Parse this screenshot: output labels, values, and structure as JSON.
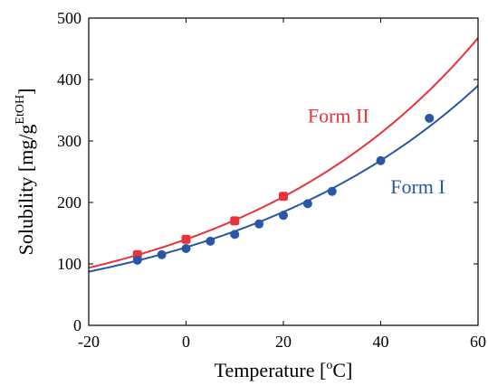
{
  "chart_data": {
    "type": "scatter",
    "xlabel": "Temperature [",
    "xlabel_sup": "o",
    "xlabel_end": "C]",
    "ylabel": "Solubility [mg/g",
    "ylabel_sup": "EtOH",
    "ylabel_end": "]",
    "xlim": [
      -20,
      60
    ],
    "ylim": [
      0,
      500
    ],
    "xticks": [
      -20,
      0,
      20,
      40,
      60
    ],
    "yticks": [
      0,
      100,
      200,
      300,
      400,
      500
    ],
    "grid": false,
    "series": [
      {
        "name": "Form II",
        "color": "#e8323c",
        "marker": "square-ish",
        "points": [
          [
            -10,
            115
          ],
          [
            0,
            140
          ],
          [
            10,
            170
          ],
          [
            20,
            210
          ]
        ],
        "fit": {
          "model": "exponential",
          "a": 140,
          "b": 0.0201
        }
      },
      {
        "name": "Form I",
        "color": "#2a56a6",
        "marker": "circle",
        "points": [
          [
            -10,
            106
          ],
          [
            -5,
            115
          ],
          [
            0,
            125
          ],
          [
            5,
            137
          ],
          [
            10,
            148
          ],
          [
            15,
            165
          ],
          [
            20,
            179
          ],
          [
            25,
            198
          ],
          [
            30,
            218
          ],
          [
            40,
            268
          ],
          [
            50,
            337
          ]
        ],
        "fit": {
          "model": "exponential",
          "a": 127,
          "b": 0.0187
        }
      }
    ],
    "annotations": [
      {
        "text": "Form II",
        "color": "#e8323c",
        "at": [
          25,
          330
        ]
      },
      {
        "text": "Form I",
        "color": "#2a56a6",
        "at": [
          42,
          215
        ]
      }
    ]
  }
}
